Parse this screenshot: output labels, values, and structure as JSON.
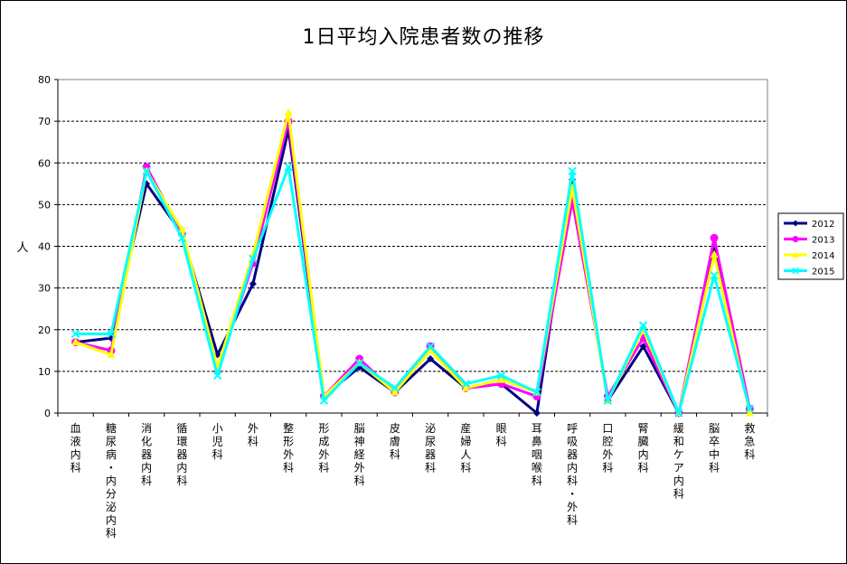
{
  "chart_data": {
    "type": "line",
    "title": "1日平均入院患者数の推移",
    "ylabel": "人",
    "ylim": [
      0,
      80
    ],
    "yticks": [
      0,
      10,
      20,
      30,
      40,
      50,
      60,
      70,
      80
    ],
    "grid": "horizontal-dashed",
    "legend_position": "right",
    "categories": [
      "血液内科",
      "糖尿病・内分泌内科",
      "消化器内科",
      "循環器内科",
      "小児科",
      "外科",
      "整形外科",
      "形成外科",
      "脳神経外科",
      "皮膚科",
      "泌尿器科",
      "産婦人科",
      "眼科",
      "耳鼻咽喉科",
      "呼吸器内科・外科",
      "口腔外科",
      "腎臓内科",
      "緩和ケア内科",
      "脳卒中科",
      "救急科"
    ],
    "series": [
      {
        "name": "2012",
        "color": "#000080",
        "marker": "diamond",
        "values": [
          17,
          18,
          55,
          43,
          14,
          31,
          68,
          4,
          11,
          5,
          13,
          6,
          7,
          0,
          56,
          3,
          16,
          0,
          39,
          1
        ]
      },
      {
        "name": "2013",
        "color": "#FF00FF",
        "marker": "circle",
        "values": [
          17,
          15,
          59,
          43,
          10,
          36,
          70,
          4,
          13,
          5,
          16,
          6,
          7,
          4,
          51,
          4,
          18,
          0,
          42,
          1
        ]
      },
      {
        "name": "2014",
        "color": "#FFFF00",
        "marker": "triangle",
        "values": [
          17,
          14,
          58,
          44,
          11,
          38,
          72,
          4,
          12,
          5,
          15,
          6,
          8,
          5,
          54,
          3,
          20,
          0,
          38,
          0
        ]
      },
      {
        "name": "2015",
        "color": "#00FFFF",
        "marker": "x",
        "values": [
          19,
          19,
          58,
          42,
          9,
          37,
          59,
          3,
          12,
          6,
          16,
          7,
          9,
          5,
          58,
          3,
          21,
          0,
          33,
          1
        ]
      }
    ]
  }
}
